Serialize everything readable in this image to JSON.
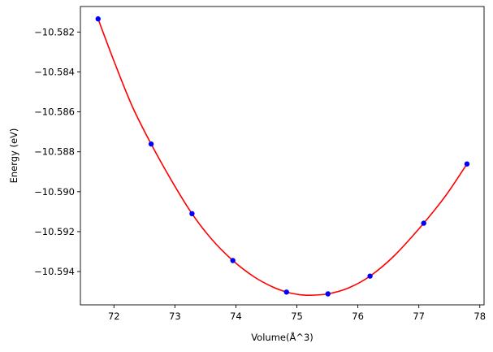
{
  "chart_data": {
    "type": "scatter",
    "xlabel": "Volume(Å^3)",
    "ylabel": "Energy (eV)",
    "xlim": [
      71.45,
      78.07
    ],
    "ylim": [
      -10.59567,
      -10.58072
    ],
    "xticks": [
      72,
      73,
      74,
      75,
      76,
      77,
      78
    ],
    "yticks": [
      -10.594,
      -10.592,
      -10.59,
      -10.588,
      -10.586,
      -10.584,
      -10.582
    ],
    "xtick_labels": [
      "72",
      "73",
      "74",
      "75",
      "76",
      "77",
      "78"
    ],
    "ytick_labels": [
      "−10.594",
      "−10.592",
      "−10.590",
      "−10.588",
      "−10.586",
      "−10.584",
      "−10.582"
    ],
    "grid": false,
    "series": [
      {
        "kind": "points",
        "color": "#0000ff",
        "x": [
          71.74,
          72.61,
          73.28,
          73.95,
          74.83,
          75.51,
          76.2,
          77.08,
          77.79
        ],
        "y": [
          -10.58134,
          -10.58761,
          -10.5911,
          -10.59345,
          -10.59503,
          -10.59512,
          -10.59423,
          -10.59158,
          -10.58861
        ]
      },
      {
        "kind": "fit-curve",
        "color": "#ff0000",
        "x": [
          71.74,
          72.0,
          72.3,
          72.61,
          72.95,
          73.28,
          73.6,
          73.95,
          74.3,
          74.6,
          74.83,
          75.0,
          75.2,
          75.51,
          75.85,
          76.2,
          76.6,
          77.08,
          77.45,
          77.79
        ],
        "y": [
          -10.58134,
          -10.58345,
          -10.58572,
          -10.58761,
          -10.58947,
          -10.5911,
          -10.59237,
          -10.59345,
          -10.59427,
          -10.59477,
          -10.59503,
          -10.59514,
          -10.59519,
          -10.59512,
          -10.59482,
          -10.59423,
          -10.5932,
          -10.59158,
          -10.59016,
          -10.58861
        ]
      }
    ]
  }
}
